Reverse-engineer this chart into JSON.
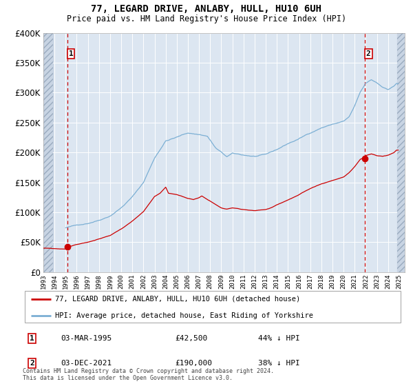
{
  "title": "77, LEGARD DRIVE, ANLABY, HULL, HU10 6UH",
  "subtitle": "Price paid vs. HM Land Registry's House Price Index (HPI)",
  "background_color": "#ffffff",
  "plot_bg_color": "#dce6f1",
  "hatch_color": "#c8d4e3",
  "grid_color": "#ffffff",
  "ylim": [
    0,
    400000
  ],
  "yticks": [
    0,
    50000,
    100000,
    150000,
    200000,
    250000,
    300000,
    350000,
    400000
  ],
  "ytick_labels": [
    "£0",
    "£50K",
    "£100K",
    "£150K",
    "£200K",
    "£250K",
    "£300K",
    "£350K",
    "£400K"
  ],
  "t1_x": 1995.17,
  "t1_price": 42500,
  "t2_x": 2021.92,
  "t2_price": 190000,
  "legend_label_red": "77, LEGARD DRIVE, ANLABY, HULL, HU10 6UH (detached house)",
  "legend_label_blue": "HPI: Average price, detached house, East Riding of Yorkshire",
  "footer": "Contains HM Land Registry data © Crown copyright and database right 2024.\nThis data is licensed under the Open Government Licence v3.0.",
  "hpi_color": "#7bafd4",
  "sale_color": "#cc0000",
  "xlim": [
    1993.0,
    2025.5
  ],
  "xtick_years": [
    1993,
    1994,
    1995,
    1996,
    1997,
    1998,
    1999,
    2000,
    2001,
    2002,
    2003,
    2004,
    2005,
    2006,
    2007,
    2008,
    2009,
    2010,
    2011,
    2012,
    2013,
    2014,
    2015,
    2016,
    2017,
    2018,
    2019,
    2020,
    2021,
    2022,
    2023,
    2024,
    2025
  ],
  "ann1_date": "03-MAR-1995",
  "ann1_price": "£42,500",
  "ann1_hpi": "44% ↓ HPI",
  "ann2_date": "03-DEC-2021",
  "ann2_price": "£190,000",
  "ann2_hpi": "38% ↓ HPI"
}
